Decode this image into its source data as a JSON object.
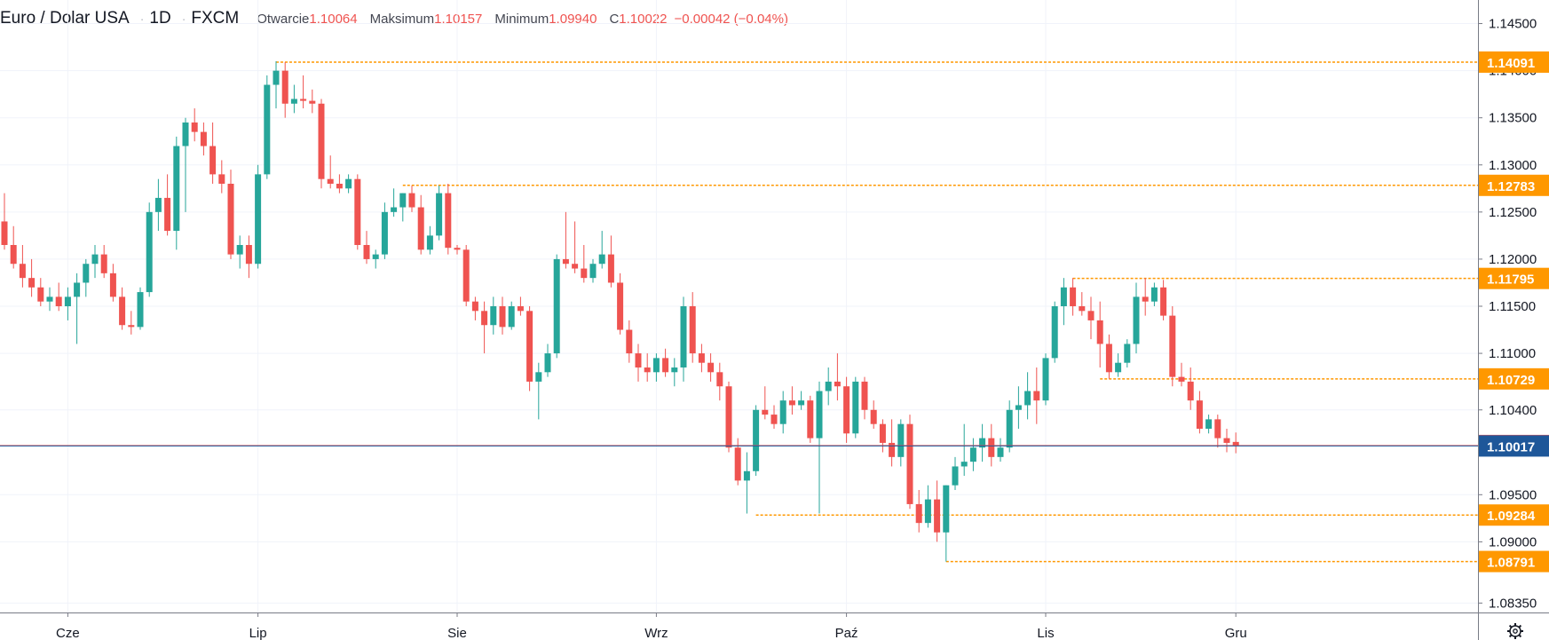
{
  "legend": {
    "symbol": "Euro / Dolar USA",
    "interval": "1D",
    "exchange": "FXCM",
    "separator": "·",
    "open_label": "Otwarcie",
    "open_value": "1.10064",
    "high_label": "Maksimum",
    "high_value": "1.10157",
    "low_label": "Minimum",
    "low_value": "1.09940",
    "close_label": "C",
    "close_value": "1.10022",
    "change": "−0.00042 (−0.04%)"
  },
  "settings_icon": "gear-icon",
  "colors": {
    "up": "#26a69a",
    "down": "#ef5350",
    "level": "#ff9800",
    "last_price": "#ef5350",
    "bid": "#1e5799",
    "grid": "#f0f3fa",
    "axis_text": "#131722"
  },
  "chart_data": {
    "type": "candlestick",
    "title": "Euro / Dolar USA · 1D · FXCM",
    "x_labels": [
      "Cze",
      "Lip",
      "Sie",
      "Wrz",
      "Paź",
      "Lis",
      "Gru"
    ],
    "x_label_index": [
      7,
      28,
      50,
      72,
      93,
      115,
      136
    ],
    "y_ticks": [
      "1.14500",
      "1.14000",
      "1.13500",
      "1.13000",
      "1.12500",
      "1.12000",
      "1.11500",
      "1.11000",
      "1.10400",
      "1.09500",
      "1.09000",
      "1.08350"
    ],
    "y_tick_values": [
      1.145,
      1.14,
      1.135,
      1.13,
      1.125,
      1.12,
      1.115,
      1.11,
      1.104,
      1.095,
      1.09,
      1.0835
    ],
    "ylim": [
      1.0825,
      1.1475
    ],
    "x_count": 148,
    "price_levels": [
      {
        "value": 1.14091,
        "label": "1.14091",
        "from_index": 30
      },
      {
        "value": 1.12783,
        "label": "1.12783",
        "from_index": 44
      },
      {
        "value": 1.11795,
        "label": "1.11795",
        "from_index": 118
      },
      {
        "value": 1.10729,
        "label": "1.10729",
        "from_index": 121
      },
      {
        "value": 1.09284,
        "label": "1.09284",
        "from_index": 83
      },
      {
        "value": 1.08791,
        "label": "1.08791",
        "from_index": 104
      }
    ],
    "last_price": {
      "value": 1.10022,
      "label": "1.10022"
    },
    "bid_price": {
      "value": 1.10017,
      "label": "1.10017"
    },
    "candles": [
      [
        1.124,
        1.127,
        1.121,
        1.1215
      ],
      [
        1.1215,
        1.1235,
        1.119,
        1.1195
      ],
      [
        1.1195,
        1.1215,
        1.117,
        1.118
      ],
      [
        1.118,
        1.12,
        1.116,
        1.117
      ],
      [
        1.117,
        1.118,
        1.115,
        1.1155
      ],
      [
        1.1155,
        1.117,
        1.1145,
        1.116
      ],
      [
        1.116,
        1.1175,
        1.1145,
        1.115
      ],
      [
        1.115,
        1.117,
        1.1135,
        1.116
      ],
      [
        1.116,
        1.1185,
        1.111,
        1.1175
      ],
      [
        1.1175,
        1.12,
        1.116,
        1.1195
      ],
      [
        1.1195,
        1.1215,
        1.118,
        1.1205
      ],
      [
        1.1205,
        1.1215,
        1.118,
        1.1185
      ],
      [
        1.1185,
        1.1195,
        1.1155,
        1.116
      ],
      [
        1.116,
        1.117,
        1.1125,
        1.113
      ],
      [
        1.113,
        1.1145,
        1.112,
        1.1128
      ],
      [
        1.1128,
        1.117,
        1.1125,
        1.1165
      ],
      [
        1.1165,
        1.126,
        1.116,
        1.125
      ],
      [
        1.125,
        1.1285,
        1.123,
        1.1265
      ],
      [
        1.1265,
        1.129,
        1.1225,
        1.123
      ],
      [
        1.123,
        1.133,
        1.121,
        1.132
      ],
      [
        1.132,
        1.135,
        1.125,
        1.1345
      ],
      [
        1.1345,
        1.136,
        1.1325,
        1.1335
      ],
      [
        1.1335,
        1.1345,
        1.131,
        1.132
      ],
      [
        1.132,
        1.1345,
        1.128,
        1.129
      ],
      [
        1.129,
        1.1305,
        1.127,
        1.128
      ],
      [
        1.128,
        1.1295,
        1.12,
        1.1205
      ],
      [
        1.1205,
        1.1225,
        1.119,
        1.1215
      ],
      [
        1.1215,
        1.1225,
        1.118,
        1.1195
      ],
      [
        1.1195,
        1.13,
        1.119,
        1.129
      ],
      [
        1.129,
        1.1395,
        1.1285,
        1.1385
      ],
      [
        1.1385,
        1.141,
        1.136,
        1.14
      ],
      [
        1.14,
        1.1409,
        1.135,
        1.1365
      ],
      [
        1.1365,
        1.1385,
        1.1355,
        1.137
      ],
      [
        1.137,
        1.1395,
        1.136,
        1.1368
      ],
      [
        1.1368,
        1.138,
        1.1355,
        1.1365
      ],
      [
        1.1365,
        1.137,
        1.1275,
        1.1285
      ],
      [
        1.1285,
        1.131,
        1.1275,
        1.128
      ],
      [
        1.128,
        1.129,
        1.127,
        1.1275
      ],
      [
        1.1275,
        1.129,
        1.127,
        1.1285
      ],
      [
        1.1285,
        1.129,
        1.121,
        1.1215
      ],
      [
        1.1215,
        1.123,
        1.1195,
        1.12
      ],
      [
        1.12,
        1.121,
        1.119,
        1.1205
      ],
      [
        1.1205,
        1.126,
        1.12,
        1.125
      ],
      [
        1.125,
        1.1275,
        1.1245,
        1.1255
      ],
      [
        1.1255,
        1.127,
        1.124,
        1.127
      ],
      [
        1.127,
        1.1278,
        1.125,
        1.1255
      ],
      [
        1.1255,
        1.1268,
        1.1205,
        1.121
      ],
      [
        1.121,
        1.1235,
        1.1205,
        1.1225
      ],
      [
        1.1225,
        1.1278,
        1.122,
        1.127
      ],
      [
        1.127,
        1.128,
        1.1205,
        1.1212
      ],
      [
        1.1212,
        1.1215,
        1.1205,
        1.121
      ],
      [
        1.121,
        1.1215,
        1.115,
        1.1155
      ],
      [
        1.1155,
        1.116,
        1.1135,
        1.1145
      ],
      [
        1.1145,
        1.1155,
        1.11,
        1.113
      ],
      [
        1.113,
        1.116,
        1.112,
        1.115
      ],
      [
        1.115,
        1.116,
        1.112,
        1.1128
      ],
      [
        1.1128,
        1.1155,
        1.1125,
        1.115
      ],
      [
        1.115,
        1.116,
        1.114,
        1.1145
      ],
      [
        1.1145,
        1.115,
        1.106,
        1.107
      ],
      [
        1.107,
        1.109,
        1.103,
        1.108
      ],
      [
        1.108,
        1.111,
        1.1075,
        1.11
      ],
      [
        1.11,
        1.1205,
        1.1095,
        1.12
      ],
      [
        1.12,
        1.125,
        1.119,
        1.1195
      ],
      [
        1.1195,
        1.124,
        1.1185,
        1.119
      ],
      [
        1.119,
        1.1215,
        1.1175,
        1.118
      ],
      [
        1.118,
        1.12,
        1.1175,
        1.1195
      ],
      [
        1.1195,
        1.123,
        1.119,
        1.1205
      ],
      [
        1.1205,
        1.1225,
        1.117,
        1.1175
      ],
      [
        1.1175,
        1.1185,
        1.112,
        1.1125
      ],
      [
        1.1125,
        1.1135,
        1.109,
        1.11
      ],
      [
        1.11,
        1.111,
        1.107,
        1.1085
      ],
      [
        1.1085,
        1.11,
        1.107,
        1.108
      ],
      [
        1.108,
        1.11,
        1.107,
        1.1095
      ],
      [
        1.1095,
        1.1105,
        1.1075,
        1.108
      ],
      [
        1.108,
        1.1095,
        1.1065,
        1.1085
      ],
      [
        1.1085,
        1.116,
        1.107,
        1.115
      ],
      [
        1.115,
        1.1165,
        1.109,
        1.11
      ],
      [
        1.11,
        1.111,
        1.108,
        1.109
      ],
      [
        1.109,
        1.11,
        1.107,
        1.108
      ],
      [
        1.108,
        1.109,
        1.105,
        1.1065
      ],
      [
        1.1065,
        1.107,
        1.0995,
        1.1
      ],
      [
        1.1,
        1.101,
        1.096,
        1.0965
      ],
      [
        1.0965,
        1.0995,
        1.093,
        1.0975
      ],
      [
        1.0975,
        1.1045,
        1.097,
        1.104
      ],
      [
        1.104,
        1.1065,
        1.103,
        1.1035
      ],
      [
        1.1035,
        1.1045,
        1.102,
        1.1025
      ],
      [
        1.1025,
        1.106,
        1.1015,
        1.105
      ],
      [
        1.105,
        1.1065,
        1.1035,
        1.1045
      ],
      [
        1.1045,
        1.106,
        1.104,
        1.105
      ],
      [
        1.105,
        1.1055,
        1.1005,
        1.101
      ],
      [
        1.101,
        1.107,
        1.093,
        1.106
      ],
      [
        1.106,
        1.1085,
        1.1045,
        1.107
      ],
      [
        1.107,
        1.11,
        1.105,
        1.1065
      ],
      [
        1.1065,
        1.1075,
        1.1005,
        1.1015
      ],
      [
        1.1015,
        1.1075,
        1.101,
        1.107
      ],
      [
        1.107,
        1.1075,
        1.103,
        1.104
      ],
      [
        1.104,
        1.105,
        1.102,
        1.1025
      ],
      [
        1.1025,
        1.103,
        1.0995,
        1.1005
      ],
      [
        1.1005,
        1.103,
        1.098,
        1.099
      ],
      [
        1.099,
        1.103,
        1.098,
        1.1025
      ],
      [
        1.1025,
        1.1035,
        1.0935,
        1.094
      ],
      [
        1.094,
        1.0955,
        1.091,
        1.092
      ],
      [
        1.092,
        1.096,
        1.0915,
        1.0945
      ],
      [
        1.0945,
        1.0965,
        1.09,
        1.091
      ],
      [
        1.091,
        1.096,
        1.0879,
        1.096
      ],
      [
        1.096,
        1.099,
        1.0955,
        1.098
      ],
      [
        1.098,
        1.1025,
        1.097,
        1.0985
      ],
      [
        1.0985,
        1.101,
        1.0975,
        1.1
      ],
      [
        1.1,
        1.1025,
        1.0985,
        1.101
      ],
      [
        1.101,
        1.1025,
        1.098,
        1.099
      ],
      [
        1.099,
        1.101,
        1.0985,
        1.1
      ],
      [
        1.1,
        1.105,
        1.0995,
        1.104
      ],
      [
        1.104,
        1.1065,
        1.102,
        1.1045
      ],
      [
        1.1045,
        1.108,
        1.103,
        1.106
      ],
      [
        1.106,
        1.1085,
        1.1025,
        1.105
      ],
      [
        1.105,
        1.11,
        1.1045,
        1.1095
      ],
      [
        1.1095,
        1.1155,
        1.109,
        1.115
      ],
      [
        1.115,
        1.118,
        1.113,
        1.117
      ],
      [
        1.117,
        1.118,
        1.114,
        1.115
      ],
      [
        1.115,
        1.1165,
        1.114,
        1.1145
      ],
      [
        1.1145,
        1.116,
        1.1115,
        1.1135
      ],
      [
        1.1135,
        1.1155,
        1.1085,
        1.111
      ],
      [
        1.111,
        1.112,
        1.1073,
        1.108
      ],
      [
        1.108,
        1.11,
        1.1075,
        1.109
      ],
      [
        1.109,
        1.1115,
        1.1085,
        1.111
      ],
      [
        1.111,
        1.1175,
        1.11,
        1.116
      ],
      [
        1.116,
        1.118,
        1.114,
        1.1155
      ],
      [
        1.1155,
        1.1175,
        1.115,
        1.117
      ],
      [
        1.117,
        1.1178,
        1.1135,
        1.114
      ],
      [
        1.114,
        1.115,
        1.1065,
        1.1075
      ],
      [
        1.1075,
        1.109,
        1.1065,
        1.107
      ],
      [
        1.107,
        1.1085,
        1.104,
        1.105
      ],
      [
        1.105,
        1.106,
        1.1015,
        1.102
      ],
      [
        1.102,
        1.1035,
        1.1015,
        1.103
      ],
      [
        1.103,
        1.1035,
        1.1,
        1.101
      ],
      [
        1.101,
        1.102,
        1.0995,
        1.1005
      ],
      [
        1.1006,
        1.1016,
        1.0994,
        1.1002
      ]
    ]
  }
}
